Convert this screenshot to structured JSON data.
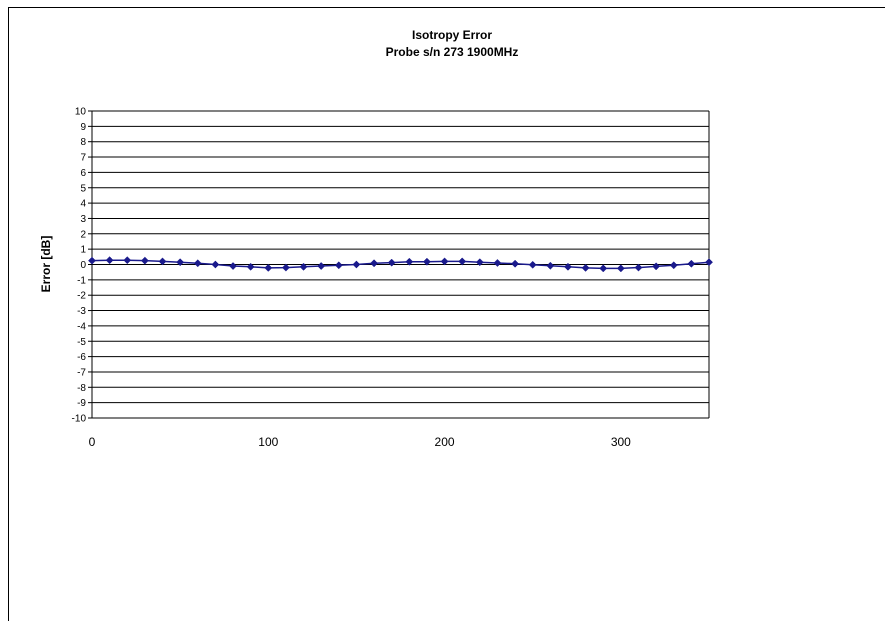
{
  "chart_data": {
    "type": "line",
    "title": "Isotropy Error",
    "subtitle": "Probe s/n 273 1900MHz",
    "xlabel": "",
    "ylabel": "Error [dB]",
    "xlim": [
      0,
      350
    ],
    "ylim": [
      -10,
      10
    ],
    "x_ticks": [
      "0",
      "100",
      "200",
      "300"
    ],
    "y_ticks": [
      "10",
      "9",
      "8",
      "7",
      "6",
      "5",
      "4",
      "3",
      "2",
      "1",
      "0",
      "-1",
      "-2",
      "-3",
      "-4",
      "-5",
      "-6",
      "-7",
      "-8",
      "-9",
      "-10"
    ],
    "grid": true,
    "legend": "none",
    "series": [
      {
        "color": "#1a1a8c",
        "marker": "diamond",
        "x": [
          0,
          10,
          20,
          30,
          40,
          50,
          60,
          70,
          80,
          90,
          100,
          110,
          120,
          130,
          140,
          150,
          160,
          170,
          180,
          190,
          200,
          210,
          220,
          230,
          240,
          250,
          260,
          270,
          280,
          290,
          300,
          310,
          320,
          330,
          340,
          350
        ],
        "y": [
          0.25,
          0.28,
          0.28,
          0.25,
          0.2,
          0.15,
          0.08,
          0.0,
          -0.1,
          -0.15,
          -0.22,
          -0.2,
          -0.15,
          -0.1,
          -0.05,
          0.0,
          0.08,
          0.12,
          0.18,
          0.18,
          0.2,
          0.2,
          0.15,
          0.1,
          0.05,
          -0.02,
          -0.08,
          -0.15,
          -0.22,
          -0.25,
          -0.25,
          -0.2,
          -0.12,
          -0.05,
          0.05,
          0.15
        ]
      }
    ]
  }
}
